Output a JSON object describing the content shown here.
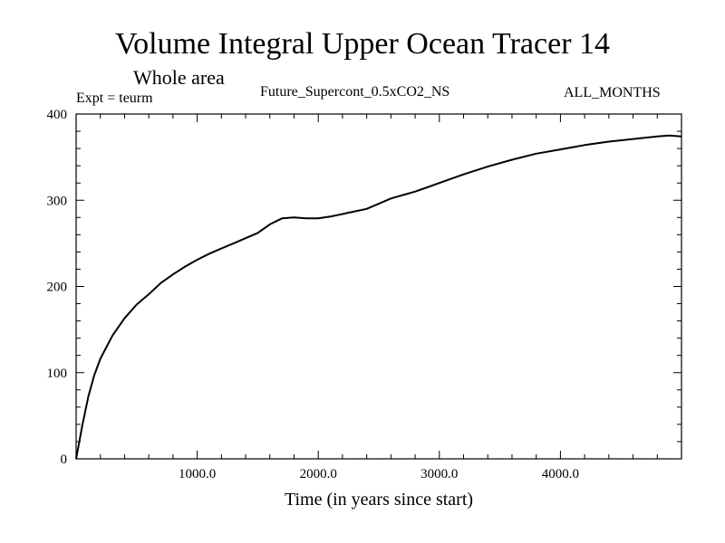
{
  "header": {
    "title": "Volume Integral Upper Ocean Tracer 14",
    "subtitle": "Whole area",
    "expt": "Expt = teurm",
    "experiment": "Future_Supercont_0.5xCO2_NS",
    "months": "ALL_MONTHS"
  },
  "chart_data": {
    "type": "line",
    "title": "Volume Integral Upper Ocean Tracer 14",
    "subtitle": "Whole area",
    "xlabel": "Time (in years since start)",
    "ylabel": "",
    "xlim": [
      0,
      5000
    ],
    "ylim": [
      0,
      400
    ],
    "x_ticks": [
      1000,
      2000,
      3000,
      4000
    ],
    "x_tick_labels": [
      "1000.0",
      "2000.0",
      "3000.0",
      "4000.0"
    ],
    "y_ticks": [
      0,
      100,
      200,
      300,
      400
    ],
    "y_tick_labels": [
      "0",
      "100",
      "200",
      "300",
      "400"
    ],
    "grid": false,
    "legend": "none",
    "line_color": "#000000",
    "series": [
      {
        "x": [
          0,
          50,
          100,
          150,
          200,
          300,
          400,
          500,
          600,
          700,
          800,
          900,
          1000,
          1100,
          1200,
          1300,
          1400,
          1500,
          1550,
          1600,
          1700,
          1800,
          1900,
          2000,
          2100,
          2200,
          2300,
          2400,
          2500,
          2600,
          2700,
          2800,
          2900,
          3000,
          3200,
          3400,
          3600,
          3800,
          4000,
          4200,
          4400,
          4600,
          4800,
          4900,
          5000
        ],
        "values": [
          0,
          38,
          72,
          97,
          116,
          143,
          163,
          179,
          191,
          204,
          214,
          223,
          231,
          238,
          244,
          250,
          256,
          262,
          267,
          272,
          279,
          280,
          279,
          279,
          281,
          284,
          287,
          290,
          296,
          302,
          306,
          310,
          315,
          320,
          330,
          339,
          347,
          354,
          359,
          364,
          368,
          371,
          374,
          375,
          374
        ]
      }
    ]
  }
}
